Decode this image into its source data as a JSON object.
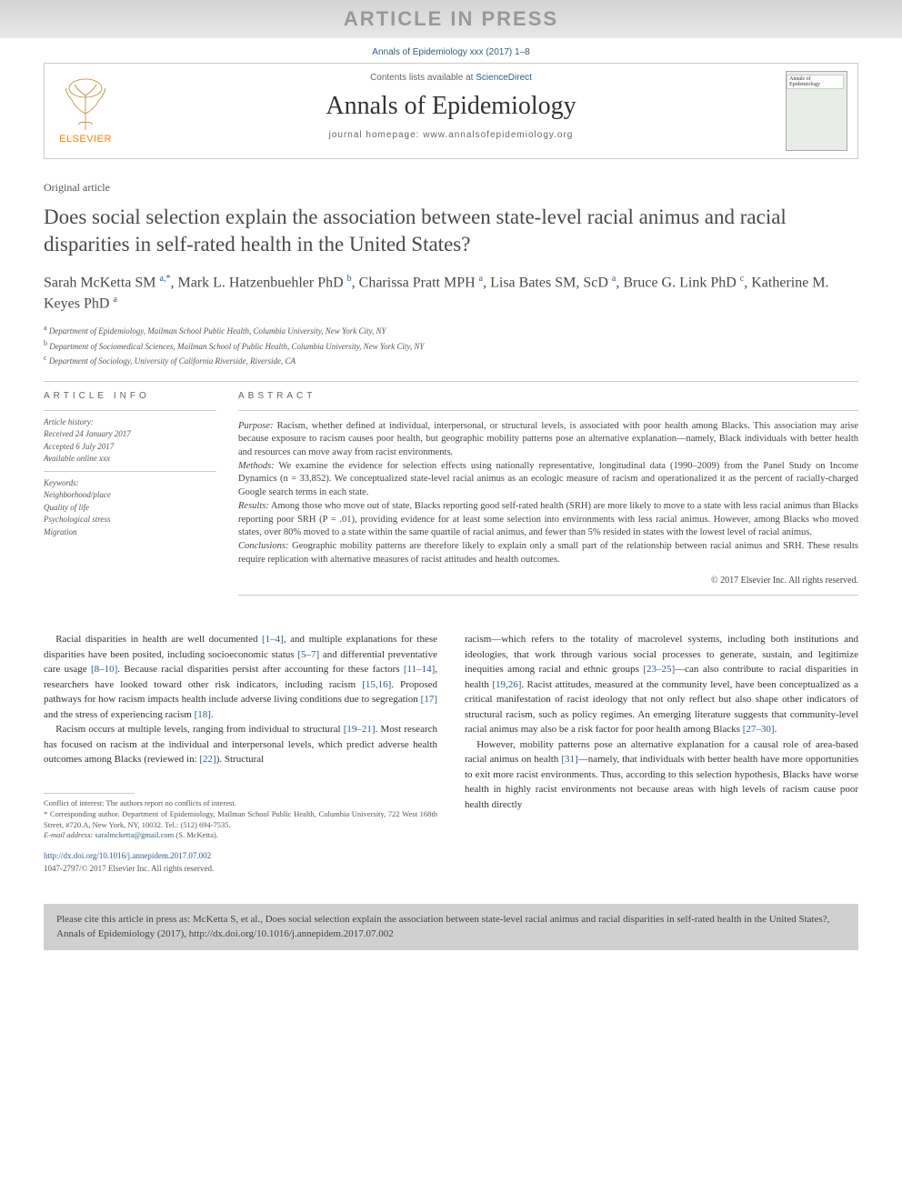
{
  "banner": "ARTICLE IN PRESS",
  "citation_line": "Annals of Epidemiology xxx (2017) 1–8",
  "header": {
    "publisher_logo_text": "ELSEVIER",
    "contents_prefix": "Contents lists available at ",
    "contents_link": "ScienceDirect",
    "journal_name": "Annals of Epidemiology",
    "homepage_prefix": "journal homepage: ",
    "homepage_url": "www.annalsofepidemiology.org",
    "cover_label": "Annals of Epidemiology"
  },
  "article_type": "Original article",
  "title": "Does social selection explain the association between state-level racial animus and racial disparities in self-rated health in the United States?",
  "authors_html": "Sarah McKetta SM <sup>a,*</sup>, Mark L. Hatzenbuehler PhD <sup>b</sup>, Charissa Pratt MPH <sup>a</sup>, Lisa Bates SM, ScD <sup>a</sup>, Bruce G. Link PhD <sup>c</sup>, Katherine M. Keyes PhD <sup>a</sup>",
  "affiliations": [
    {
      "sup": "a",
      "text": "Department of Epidemiology, Mailman School Public Health, Columbia University, New York City, NY"
    },
    {
      "sup": "b",
      "text": "Department of Sociomedical Sciences, Mailman School of Public Health, Columbia University, New York City, NY"
    },
    {
      "sup": "c",
      "text": "Department of Sociology, University of California Riverside, Riverside, CA"
    }
  ],
  "info": {
    "header": "ARTICLE INFO",
    "history_label": "Article history:",
    "history": [
      "Received 24 January 2017",
      "Accepted 6 July 2017",
      "Available online xxx"
    ],
    "keywords_label": "Keywords:",
    "keywords": [
      "Neighborhood/place",
      "Quality of life",
      "Psychological stress",
      "Migration"
    ]
  },
  "abstract": {
    "header": "ABSTRACT",
    "purpose_label": "Purpose:",
    "purpose": " Racism, whether defined at individual, interpersonal, or structural levels, is associated with poor health among Blacks. This association may arise because exposure to racism causes poor health, but geographic mobility patterns pose an alternative explanation—namely, Black individuals with better health and resources can move away from racist environments.",
    "methods_label": "Methods:",
    "methods": " We examine the evidence for selection effects using nationally representative, longitudinal data (1990–2009) from the Panel Study on Income Dynamics (n = 33,852). We conceptualized state-level racial animus as an ecologic measure of racism and operationalized it as the percent of racially-charged Google search terms in each state.",
    "results_label": "Results:",
    "results": " Among those who move out of state, Blacks reporting good self-rated health (SRH) are more likely to move to a state with less racial animus than Blacks reporting poor SRH (P = .01), providing evidence for at least some selection into environments with less racial animus. However, among Blacks who moved states, over 80% moved to a state within the same quartile of racial animus, and fewer than 5% resided in states with the lowest level of racial animus.",
    "conclusions_label": "Conclusions:",
    "conclusions": " Geographic mobility patterns are therefore likely to explain only a small part of the relationship between racial animus and SRH. These results require replication with alternative measures of racist attitudes and health outcomes.",
    "copyright": "© 2017 Elsevier Inc. All rights reserved."
  },
  "body": {
    "col1_p1": "Racial disparities in health are well documented [1–4], and multiple explanations for these disparities have been posited, including socioeconomic status [5–7] and differential preventative care usage [8–10]. Because racial disparities persist after accounting for these factors [11–14], researchers have looked toward other risk indicators, including racism [15,16]. Proposed pathways for how racism impacts health include adverse living conditions due to segregation [17] and the stress of experiencing racism [18].",
    "col1_p2": "Racism occurs at multiple levels, ranging from individual to structural [19–21]. Most research has focused on racism at the individual and interpersonal levels, which predict adverse health outcomes among Blacks (reviewed in: [22]). Structural",
    "col2_p1": "racism—which refers to the totality of macrolevel systems, including both institutions and ideologies, that work through various social processes to generate, sustain, and legitimize inequities among racial and ethnic groups [23–25]—can also contribute to racial disparities in health [19,26]. Racist attitudes, measured at the community level, have been conceptualized as a critical manifestation of racist ideology that not only reflect but also shape other indicators of structural racism, such as policy regimes. An emerging literature suggests that community-level racial animus may also be a risk factor for poor health among Blacks [27–30].",
    "col2_p2": "However, mobility patterns pose an alternative explanation for a causal role of area-based racial animus on health [31]—namely, that individuals with better health have more opportunities to exit more racist environments. Thus, according to this selection hypothesis, Blacks have worse health in highly racist environments not because areas with high levels of racism cause poor health directly"
  },
  "footnotes": {
    "conflict": "Conflict of interest: The authors report no conflicts of interest.",
    "corresponding": "* Corresponding author. Department of Epidemiology, Mailman School Public Health, Columbia University, 722 West 168th Street, #720.A, New York, NY, 10032. Tel.: (512) 694-7535.",
    "email_label": "E-mail address:",
    "email": "saralmcketta@gmail.com",
    "email_suffix": " (S. McKetta)."
  },
  "doi": "http://dx.doi.org/10.1016/j.annepidem.2017.07.002",
  "issn_line": "1047-2797/© 2017 Elsevier Inc. All rights reserved.",
  "cite_box": "Please cite this article in press as: McKetta S, et al., Does social selection explain the association between state-level racial animus and racial disparities in self-rated health in the United States?, Annals of Epidemiology (2017), http://dx.doi.org/10.1016/j.annepidem.2017.07.002",
  "colors": {
    "link": "#2e5c8a",
    "publisher": "#ff8000",
    "banner_text": "#999999"
  }
}
